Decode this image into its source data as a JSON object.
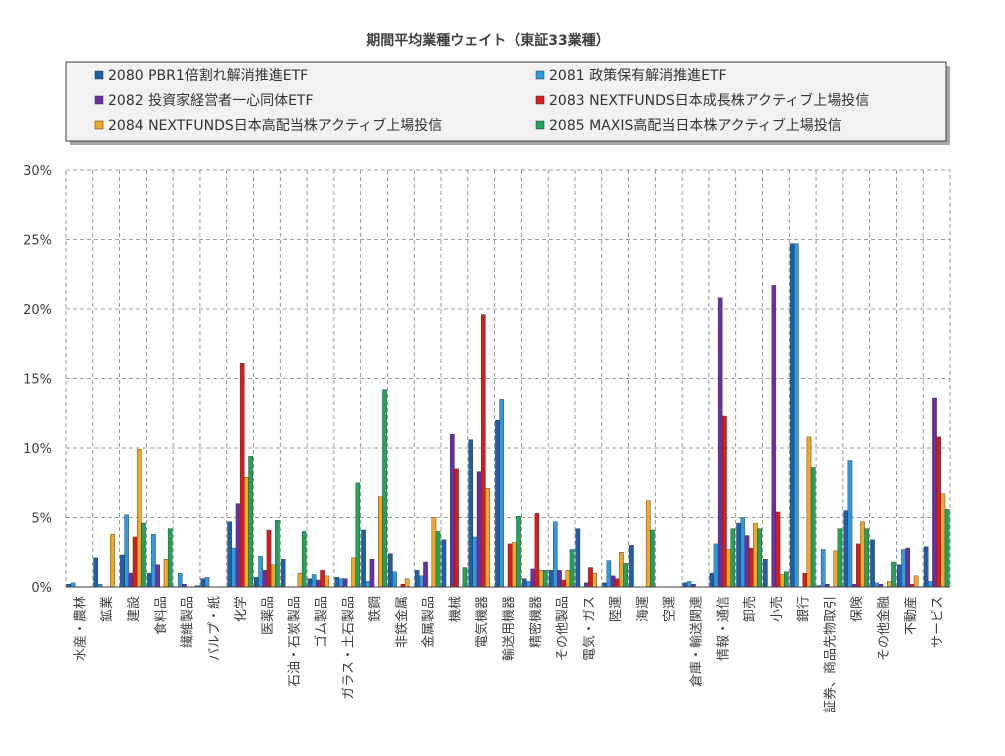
{
  "chart_data": {
    "type": "bar",
    "title": "期間平均業種ウェイト（東証33業種）",
    "xlabel": "",
    "ylabel": "",
    "ylim": [
      0,
      30
    ],
    "yticks": [
      "0%",
      "5%",
      "10%",
      "15%",
      "20%",
      "25%",
      "30%"
    ],
    "grid": true,
    "legend_position": "top",
    "categories": [
      "水産・農林",
      "鉱業",
      "建設",
      "食料品",
      "繊維製品",
      "パルプ・紙",
      "化学",
      "医薬品",
      "石油・石炭製品",
      "ゴム製品",
      "ガラス・土石製品",
      "鉄鋼",
      "非鉄金属",
      "金属製品",
      "機械",
      "電気機器",
      "輸送用機器",
      "精密機器",
      "その他製品",
      "電気・ガス",
      "陸運",
      "海運",
      "空運",
      "倉庫・輸送関連",
      "情報・通信",
      "卸売",
      "小売",
      "銀行",
      "証券、商品先物取引",
      "保険",
      "その他金融",
      "不動産",
      "サービス"
    ],
    "series": [
      {
        "name": "2080 PBR1倍割れ解消推進ETF",
        "color": "#1f5fa8",
        "values": [
          0.2,
          2.1,
          2.3,
          1.0,
          0,
          0.6,
          4.7,
          0.7,
          2.0,
          0.6,
          0.7,
          4.1,
          2.4,
          1.2,
          3.4,
          10.6,
          12.0,
          0.6,
          1.2,
          4.2,
          0.3,
          3.0,
          0,
          0.3,
          1.0,
          4.6,
          2.0,
          24.7,
          0.1,
          5.5,
          3.4,
          1.6,
          2.9
        ]
      },
      {
        "name": "2081 政策保有解消推進ETF",
        "color": "#2e9be0",
        "values": [
          0.3,
          0.2,
          5.2,
          3.8,
          1.0,
          0.7,
          2.8,
          2.2,
          0,
          0.9,
          0.6,
          0.4,
          1.1,
          0.8,
          0,
          3.6,
          13.5,
          0.4,
          4.7,
          0,
          1.9,
          0,
          0,
          0.4,
          3.1,
          5.0,
          0,
          24.7,
          2.7,
          9.1,
          0.3,
          2.7,
          0.4
        ]
      },
      {
        "name": "2082 投資家経営者一心同体ETF",
        "color": "#6b2fa2",
        "values": [
          0,
          0,
          1.0,
          1.6,
          0.2,
          0,
          6.0,
          1.2,
          0,
          0.5,
          0.6,
          2.0,
          0,
          1.8,
          11.0,
          8.3,
          0,
          1.3,
          1.2,
          0.3,
          0.8,
          0,
          0,
          0.2,
          20.8,
          3.7,
          21.7,
          0,
          0.2,
          0.2,
          0.2,
          2.8,
          13.6
        ]
      },
      {
        "name": "2083 NEXTFUNDS日本成長株アクティブ上場投信",
        "color": "#d61c1c",
        "values": [
          0,
          0,
          3.6,
          0,
          0,
          0,
          16.1,
          4.1,
          0,
          1.2,
          0,
          0,
          0.2,
          0,
          8.5,
          19.6,
          3.1,
          5.3,
          0.5,
          1.4,
          0.6,
          0,
          0,
          0,
          12.3,
          2.8,
          5.4,
          1.0,
          0,
          3.1,
          0,
          0.2,
          10.8
        ]
      },
      {
        "name": "2084 NEXTFUNDS日本高配当株アクティブ上場投信",
        "color": "#f5a623",
        "values": [
          0,
          3.8,
          9.9,
          2.0,
          0,
          0,
          7.9,
          1.6,
          1.0,
          0.8,
          2.1,
          6.5,
          0.6,
          5.0,
          0,
          7.1,
          3.2,
          1.2,
          1.2,
          1.0,
          2.5,
          6.2,
          0,
          0,
          2.7,
          4.6,
          0.9,
          10.8,
          2.6,
          4.7,
          0.4,
          0.8,
          6.7
        ]
      },
      {
        "name": "2085 MAXIS高配当日本株アクティブ上場投信",
        "color": "#1fa55a",
        "values": [
          0,
          0,
          4.6,
          4.2,
          0.1,
          0,
          9.4,
          4.8,
          4.0,
          0,
          7.5,
          14.2,
          0,
          4.0,
          1.4,
          0,
          5.1,
          1.2,
          2.7,
          0,
          1.7,
          4.1,
          0,
          0,
          4.2,
          4.2,
          1.1,
          8.6,
          4.2,
          4.2,
          1.8,
          0,
          5.6
        ]
      }
    ]
  }
}
